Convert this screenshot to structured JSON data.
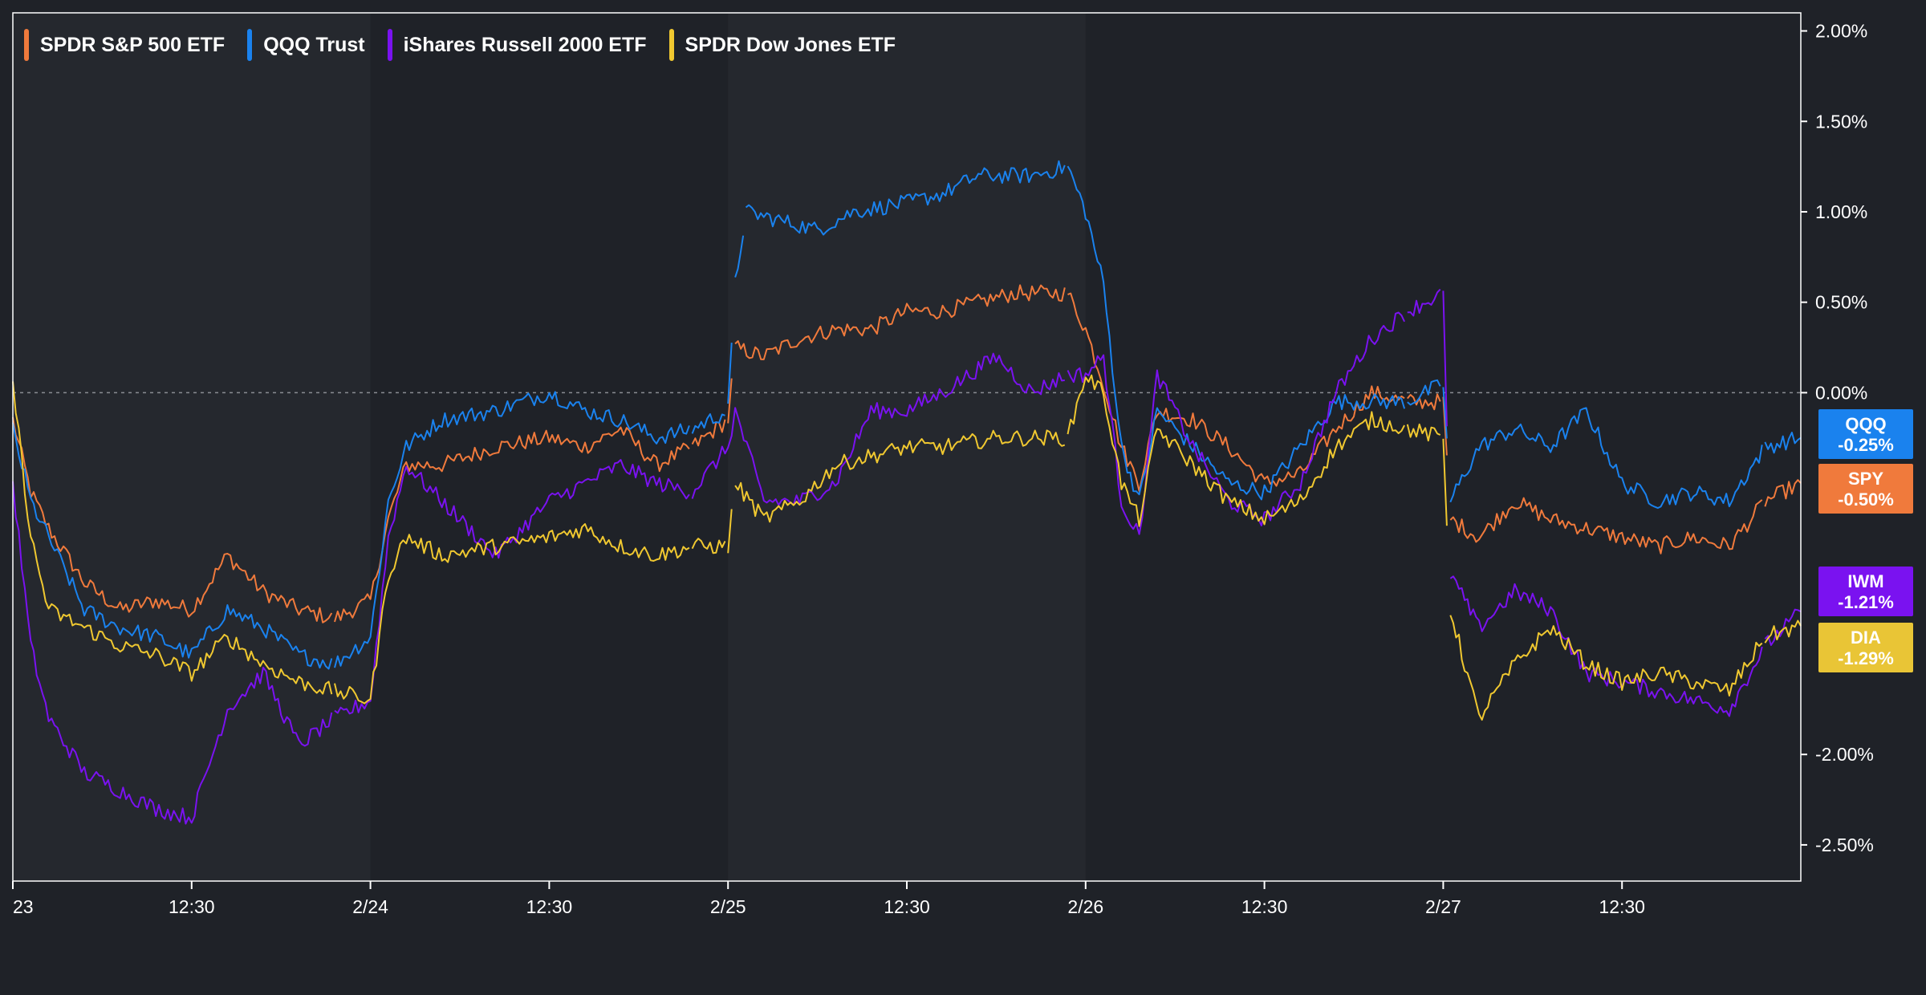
{
  "legend": [
    {
      "label": "SPDR S&P 500 ETF",
      "color": "#f07a3c"
    },
    {
      "label": "QQQ Trust",
      "color": "#1a82ee"
    },
    {
      "label": "iShares Russell 2000 ETF",
      "color": "#7a12f0"
    },
    {
      "label": "SPDR Dow Jones ETF",
      "color": "#f0c830"
    }
  ],
  "badges": [
    {
      "ticker": "QQQ",
      "value": "-0.25%",
      "color": "#1a82ee"
    },
    {
      "ticker": "SPY",
      "value": "-0.50%",
      "color": "#f07a3c"
    },
    {
      "ticker": "IWM",
      "value": "-1.21%",
      "color": "#7a12f0"
    },
    {
      "ticker": "DIA",
      "value": "-1.29%",
      "color": "#e9c536"
    }
  ],
  "colors": {
    "background": "#1f2228",
    "plot_alt_band": "#25282e",
    "axis": "#ffffff",
    "zero_line": "#8a8d93"
  },
  "chart_data": {
    "type": "line",
    "x_labels": [
      "23",
      "12:30",
      "2/24",
      "12:30",
      "2/25",
      "12:30",
      "2/26",
      "12:30",
      "2/27",
      "12:30"
    ],
    "y_ticks": [
      "2.00%",
      "1.50%",
      "1.00%",
      "0.50%",
      "0.00%",
      "-2.00%",
      "-2.50%"
    ],
    "y_tick_values": [
      2.0,
      1.5,
      1.0,
      0.5,
      0.0,
      -2.0,
      -2.5
    ],
    "ylim": [
      -2.7,
      2.1
    ],
    "x_range": [
      0,
      5
    ],
    "zero_line": true,
    "legend_position": "top-left",
    "y_axis_side": "right",
    "series": [
      {
        "name": "SPDR S&P 500 ETF",
        "ticker": "SPY",
        "color": "#f07a3c",
        "last": -0.5,
        "points": [
          [
            0.0,
            -0.15
          ],
          [
            0.05,
            -0.55
          ],
          [
            0.1,
            -0.75
          ],
          [
            0.2,
            -1.05
          ],
          [
            0.3,
            -1.2
          ],
          [
            0.4,
            -1.15
          ],
          [
            0.5,
            -1.2
          ],
          [
            0.6,
            -0.9
          ],
          [
            0.7,
            -1.1
          ],
          [
            0.8,
            -1.2
          ],
          [
            0.9,
            -1.25
          ],
          [
            1.0,
            -1.15
          ],
          [
            1.05,
            -0.7
          ],
          [
            1.1,
            -0.4
          ],
          [
            1.2,
            -0.4
          ],
          [
            1.35,
            -0.3
          ],
          [
            1.5,
            -0.25
          ],
          [
            1.6,
            -0.3
          ],
          [
            1.7,
            -0.2
          ],
          [
            1.8,
            -0.4
          ],
          [
            1.9,
            -0.3
          ],
          [
            2.0,
            -0.15
          ],
          [
            2.02,
            0.25
          ],
          [
            2.1,
            0.2
          ],
          [
            2.2,
            0.3
          ],
          [
            2.3,
            0.35
          ],
          [
            2.4,
            0.35
          ],
          [
            2.5,
            0.45
          ],
          [
            2.6,
            0.45
          ],
          [
            2.7,
            0.5
          ],
          [
            2.8,
            0.55
          ],
          [
            2.95,
            0.55
          ],
          [
            3.0,
            0.35
          ],
          [
            3.05,
            0.05
          ],
          [
            3.1,
            -0.3
          ],
          [
            3.15,
            -0.5
          ],
          [
            3.2,
            -0.1
          ],
          [
            3.3,
            -0.15
          ],
          [
            3.4,
            -0.3
          ],
          [
            3.5,
            -0.5
          ],
          [
            3.6,
            -0.45
          ],
          [
            3.7,
            -0.2
          ],
          [
            3.8,
            0.0
          ],
          [
            3.9,
            -0.05
          ],
          [
            4.0,
            -0.05
          ],
          [
            4.02,
            -0.7
          ],
          [
            4.1,
            -0.8
          ],
          [
            4.2,
            -0.6
          ],
          [
            4.3,
            -0.7
          ],
          [
            4.4,
            -0.75
          ],
          [
            4.5,
            -0.8
          ],
          [
            4.6,
            -0.85
          ],
          [
            4.7,
            -0.8
          ],
          [
            4.8,
            -0.85
          ],
          [
            4.9,
            -0.6
          ],
          [
            5.0,
            -0.5
          ]
        ]
      },
      {
        "name": "QQQ Trust",
        "ticker": "QQQ",
        "color": "#1a82ee",
        "last": -0.25,
        "points": [
          [
            0.0,
            -0.2
          ],
          [
            0.05,
            -0.6
          ],
          [
            0.1,
            -0.8
          ],
          [
            0.2,
            -1.2
          ],
          [
            0.3,
            -1.3
          ],
          [
            0.4,
            -1.35
          ],
          [
            0.5,
            -1.45
          ],
          [
            0.6,
            -1.2
          ],
          [
            0.7,
            -1.3
          ],
          [
            0.8,
            -1.45
          ],
          [
            0.9,
            -1.5
          ],
          [
            1.0,
            -1.35
          ],
          [
            1.05,
            -0.6
          ],
          [
            1.1,
            -0.3
          ],
          [
            1.2,
            -0.15
          ],
          [
            1.35,
            -0.1
          ],
          [
            1.5,
            0.0
          ],
          [
            1.6,
            -0.1
          ],
          [
            1.7,
            -0.15
          ],
          [
            1.8,
            -0.25
          ],
          [
            1.9,
            -0.2
          ],
          [
            2.0,
            -0.1
          ],
          [
            2.02,
            0.6
          ],
          [
            2.05,
            1.0
          ],
          [
            2.15,
            0.95
          ],
          [
            2.25,
            0.9
          ],
          [
            2.35,
            1.0
          ],
          [
            2.5,
            1.05
          ],
          [
            2.6,
            1.1
          ],
          [
            2.7,
            1.2
          ],
          [
            2.85,
            1.2
          ],
          [
            2.95,
            1.25
          ],
          [
            3.0,
            1.0
          ],
          [
            3.05,
            0.6
          ],
          [
            3.1,
            -0.3
          ],
          [
            3.15,
            -0.6
          ],
          [
            3.2,
            -0.1
          ],
          [
            3.3,
            -0.3
          ],
          [
            3.4,
            -0.5
          ],
          [
            3.5,
            -0.55
          ],
          [
            3.6,
            -0.3
          ],
          [
            3.7,
            -0.05
          ],
          [
            3.8,
            -0.05
          ],
          [
            3.9,
            -0.05
          ],
          [
            4.0,
            0.05
          ],
          [
            4.02,
            -0.6
          ],
          [
            4.1,
            -0.3
          ],
          [
            4.2,
            -0.2
          ],
          [
            4.3,
            -0.3
          ],
          [
            4.4,
            -0.1
          ],
          [
            4.5,
            -0.5
          ],
          [
            4.6,
            -0.6
          ],
          [
            4.7,
            -0.55
          ],
          [
            4.8,
            -0.6
          ],
          [
            4.9,
            -0.3
          ],
          [
            5.0,
            -0.25
          ]
        ]
      },
      {
        "name": "iShares Russell 2000 ETF",
        "ticker": "IWM",
        "color": "#7a12f0",
        "last": -1.21,
        "points": [
          [
            0.0,
            -0.5
          ],
          [
            0.05,
            -1.4
          ],
          [
            0.1,
            -1.8
          ],
          [
            0.2,
            -2.1
          ],
          [
            0.3,
            -2.2
          ],
          [
            0.4,
            -2.3
          ],
          [
            0.5,
            -2.35
          ],
          [
            0.6,
            -1.75
          ],
          [
            0.7,
            -1.55
          ],
          [
            0.8,
            -1.95
          ],
          [
            0.9,
            -1.8
          ],
          [
            1.0,
            -1.7
          ],
          [
            1.05,
            -0.8
          ],
          [
            1.1,
            -0.4
          ],
          [
            1.2,
            -0.6
          ],
          [
            1.35,
            -0.9
          ],
          [
            1.5,
            -0.6
          ],
          [
            1.6,
            -0.5
          ],
          [
            1.7,
            -0.4
          ],
          [
            1.8,
            -0.5
          ],
          [
            1.9,
            -0.55
          ],
          [
            2.0,
            -0.3
          ],
          [
            2.02,
            -0.1
          ],
          [
            2.1,
            -0.6
          ],
          [
            2.2,
            -0.6
          ],
          [
            2.3,
            -0.5
          ],
          [
            2.4,
            -0.1
          ],
          [
            2.5,
            -0.1
          ],
          [
            2.6,
            0.0
          ],
          [
            2.75,
            0.2
          ],
          [
            2.85,
            0.0
          ],
          [
            2.95,
            0.1
          ],
          [
            3.0,
            0.1
          ],
          [
            3.05,
            0.2
          ],
          [
            3.1,
            -0.6
          ],
          [
            3.15,
            -0.8
          ],
          [
            3.2,
            0.1
          ],
          [
            3.3,
            -0.3
          ],
          [
            3.4,
            -0.6
          ],
          [
            3.5,
            -0.7
          ],
          [
            3.6,
            -0.5
          ],
          [
            3.7,
            0.0
          ],
          [
            3.8,
            0.3
          ],
          [
            3.9,
            0.45
          ],
          [
            4.0,
            0.55
          ],
          [
            4.02,
            -1.0
          ],
          [
            4.1,
            -1.3
          ],
          [
            4.2,
            -1.1
          ],
          [
            4.3,
            -1.2
          ],
          [
            4.4,
            -1.55
          ],
          [
            4.5,
            -1.6
          ],
          [
            4.6,
            -1.65
          ],
          [
            4.7,
            -1.7
          ],
          [
            4.8,
            -1.75
          ],
          [
            4.9,
            -1.4
          ],
          [
            5.0,
            -1.21
          ]
        ]
      },
      {
        "name": "SPDR Dow Jones ETF",
        "ticker": "DIA",
        "color": "#f0c830",
        "last": -1.29,
        "points": [
          [
            0.0,
            0.05
          ],
          [
            0.05,
            -0.8
          ],
          [
            0.1,
            -1.2
          ],
          [
            0.2,
            -1.3
          ],
          [
            0.3,
            -1.4
          ],
          [
            0.4,
            -1.45
          ],
          [
            0.5,
            -1.55
          ],
          [
            0.6,
            -1.35
          ],
          [
            0.7,
            -1.5
          ],
          [
            0.8,
            -1.6
          ],
          [
            0.9,
            -1.65
          ],
          [
            1.0,
            -1.7
          ],
          [
            1.05,
            -1.0
          ],
          [
            1.1,
            -0.8
          ],
          [
            1.2,
            -0.9
          ],
          [
            1.35,
            -0.85
          ],
          [
            1.5,
            -0.8
          ],
          [
            1.6,
            -0.75
          ],
          [
            1.7,
            -0.85
          ],
          [
            1.8,
            -0.9
          ],
          [
            1.9,
            -0.85
          ],
          [
            2.0,
            -0.85
          ],
          [
            2.02,
            -0.5
          ],
          [
            2.1,
            -0.7
          ],
          [
            2.2,
            -0.6
          ],
          [
            2.3,
            -0.4
          ],
          [
            2.4,
            -0.35
          ],
          [
            2.5,
            -0.3
          ],
          [
            2.6,
            -0.3
          ],
          [
            2.75,
            -0.25
          ],
          [
            2.85,
            -0.25
          ],
          [
            2.95,
            -0.25
          ],
          [
            3.0,
            0.1
          ],
          [
            3.05,
            0.0
          ],
          [
            3.1,
            -0.5
          ],
          [
            3.15,
            -0.7
          ],
          [
            3.2,
            -0.2
          ],
          [
            3.3,
            -0.4
          ],
          [
            3.4,
            -0.6
          ],
          [
            3.5,
            -0.7
          ],
          [
            3.6,
            -0.6
          ],
          [
            3.7,
            -0.3
          ],
          [
            3.8,
            -0.15
          ],
          [
            3.9,
            -0.2
          ],
          [
            4.0,
            -0.25
          ],
          [
            4.02,
            -1.2
          ],
          [
            4.1,
            -1.8
          ],
          [
            4.2,
            -1.5
          ],
          [
            4.3,
            -1.3
          ],
          [
            4.4,
            -1.5
          ],
          [
            4.5,
            -1.6
          ],
          [
            4.6,
            -1.55
          ],
          [
            4.7,
            -1.6
          ],
          [
            4.8,
            -1.65
          ],
          [
            4.9,
            -1.35
          ],
          [
            5.0,
            -1.29
          ]
        ]
      }
    ]
  }
}
